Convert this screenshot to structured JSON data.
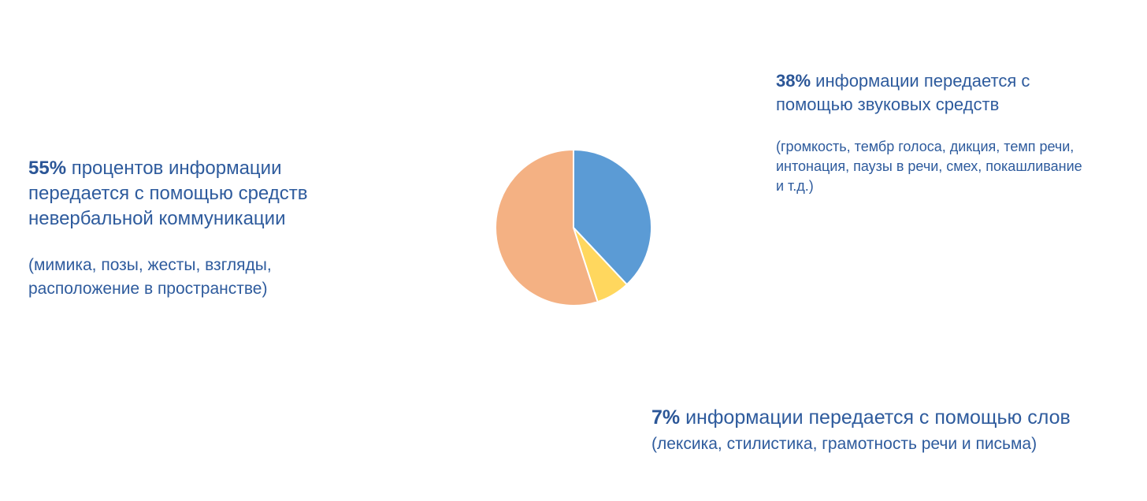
{
  "page": {
    "background": "#ffffff",
    "text_color": "#2e5b9d"
  },
  "chart_data": {
    "type": "pie",
    "title": "",
    "legend": "none",
    "start_angle_deg": 0,
    "direction": "clockwise",
    "slices": [
      {
        "id": "sound",
        "value": 38,
        "color": "#5b9bd5",
        "label": "38% информации передается с помощью звуковых средств"
      },
      {
        "id": "words",
        "value": 7,
        "color": "#ffd75e",
        "label": "7% информации передается с помощью слов"
      },
      {
        "id": "nonverbal",
        "value": 55,
        "color": "#f4b183",
        "label": "55% процентов информации передается с помощью средств невербальной коммуникации"
      }
    ]
  },
  "annotations": {
    "nonverbal": {
      "highlight": "55%",
      "text": " процентов информации передается с помощью средств невербальной коммуникации",
      "subtext": "(мимика, позы, жесты, взгляды, расположение в пространстве)"
    },
    "sound": {
      "highlight": "38%",
      "text": " информации передается с помощью звуковых средств",
      "subtext": "(громкость, тембр голоса, дикция, темп речи, интонация, паузы в речи, смех, покашливание и т.д.)"
    },
    "words": {
      "highlight": "7%",
      "text": " информации передается с помощью слов",
      "subtext": "(лексика, стилистика, грамотность речи и письма)"
    }
  }
}
